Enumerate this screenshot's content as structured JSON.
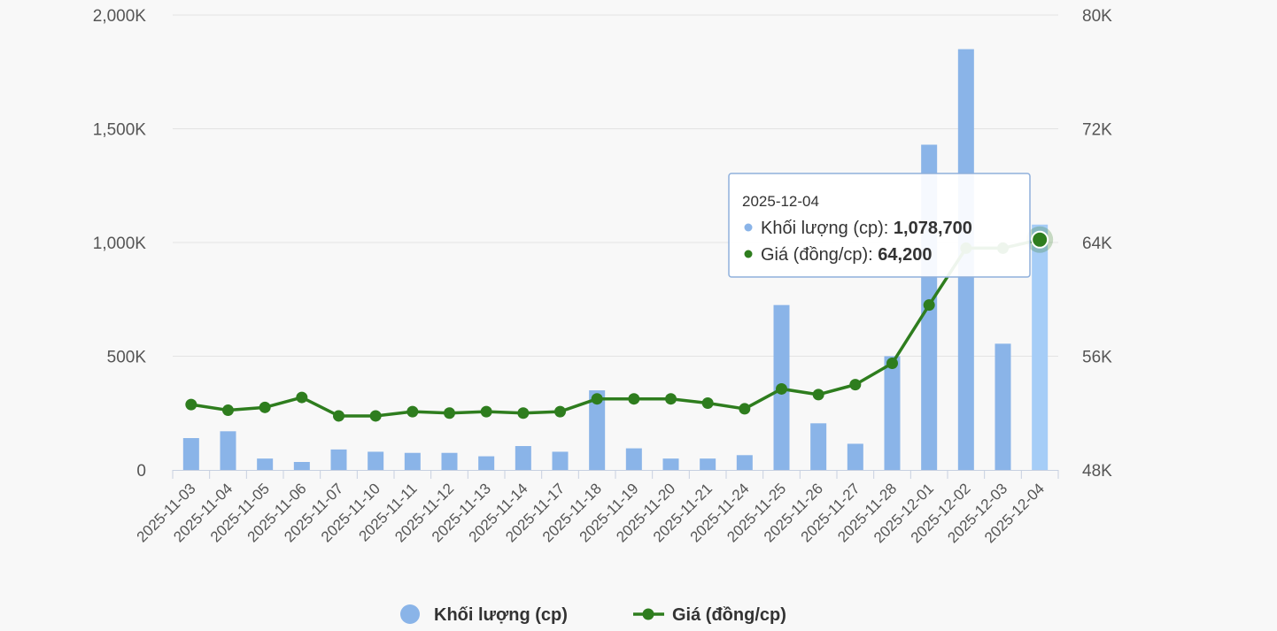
{
  "chart_data": {
    "type": "bar",
    "categories": [
      "2025-11-03",
      "2025-11-04",
      "2025-11-05",
      "2025-11-06",
      "2025-11-07",
      "2025-11-10",
      "2025-11-11",
      "2025-11-12",
      "2025-11-13",
      "2025-11-14",
      "2025-11-17",
      "2025-11-18",
      "2025-11-19",
      "2025-11-20",
      "2025-11-21",
      "2025-11-24",
      "2025-11-25",
      "2025-11-26",
      "2025-11-27",
      "2025-11-28",
      "2025-12-01",
      "2025-12-02",
      "2025-12-03",
      "2025-12-04"
    ],
    "series": [
      {
        "name": "Khối lượng (cp)",
        "type": "bar",
        "axis": "left",
        "color": "#8ab4e8",
        "values": [
          140000,
          170000,
          50000,
          35000,
          90000,
          80000,
          75000,
          75000,
          60000,
          105000,
          80000,
          350000,
          95000,
          50000,
          50000,
          65000,
          725000,
          205000,
          115000,
          500000,
          1430000,
          1850000,
          555000,
          1078700
        ]
      },
      {
        "name": "Giá (đồng/cp)",
        "type": "line",
        "axis": "right",
        "color": "#2e7d1e",
        "values": [
          52600,
          52200,
          52400,
          53100,
          51800,
          51800,
          52100,
          52000,
          52100,
          52000,
          52100,
          53000,
          53000,
          53000,
          52700,
          52300,
          53700,
          53300,
          54000,
          55500,
          59600,
          63600,
          63600,
          64200
        ]
      }
    ],
    "left_axis": {
      "ylim": [
        0,
        2000000
      ],
      "tick_labels": [
        "0",
        "500K",
        "1,000K",
        "1,500K",
        "2,000K"
      ]
    },
    "right_axis": {
      "ylim": [
        48000,
        80000
      ],
      "tick_labels": [
        "48K",
        "56K",
        "64K",
        "72K",
        "80K"
      ]
    },
    "grid": true,
    "legend_position": "bottom-center",
    "highlighted_category": "2025-12-04",
    "highlight_bar_color": "#a6cdf7",
    "tooltip": {
      "date": "2025-12-04",
      "volume_label": "Khối lượng (cp)",
      "volume_value": "1,078,700",
      "price_label": "Giá (đồng/cp)",
      "price_value": "64,200"
    }
  }
}
